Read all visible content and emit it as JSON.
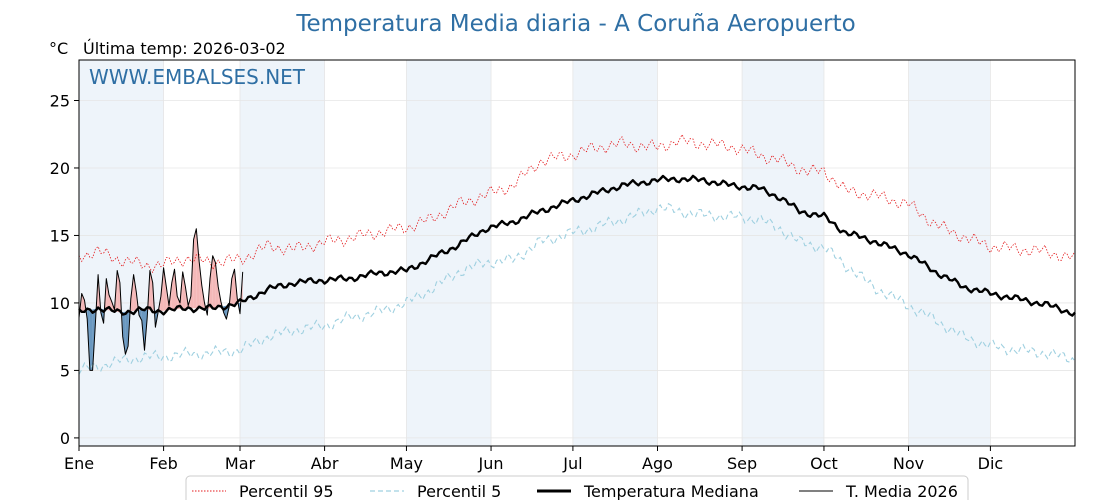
{
  "chart_data": {
    "type": "line",
    "title": "Temperatura Media diaria - A Coruña Aeropuerto",
    "unit_label": "°C",
    "subtitle": "Última temp: 2026-03-02",
    "watermark": "WWW.EMBALSES.NET",
    "x_tick_labels": [
      "Ene",
      "Feb",
      "Mar",
      "Abr",
      "May",
      "Jun",
      "Jul",
      "Ago",
      "Sep",
      "Oct",
      "Nov",
      "Dic"
    ],
    "x_tick_days": [
      1,
      32,
      60,
      91,
      121,
      152,
      182,
      213,
      244,
      274,
      305,
      335
    ],
    "xlim": [
      1,
      366
    ],
    "y_ticks": [
      0,
      5,
      10,
      15,
      20,
      25
    ],
    "ylim": [
      -0.6,
      28
    ],
    "grid": true,
    "shaded_months": [
      "Ene",
      "Mar",
      "May",
      "Jul",
      "Sep",
      "Nov"
    ],
    "legend_position": "bottom",
    "colors": {
      "p95": "#e41a1c",
      "p5": "#9fd0e0",
      "median": "#000000",
      "current": "#000000",
      "above_fill": "#f4b8b8",
      "below_fill": "#6a98c0",
      "title": "#2f6fa4",
      "shade": "#eef4fa"
    },
    "series": [
      {
        "name": "Percentil 95",
        "key": "p95",
        "style": "dotted",
        "points": [
          [
            1,
            13.5
          ],
          [
            8,
            13.8
          ],
          [
            16,
            13.2
          ],
          [
            25,
            12.8
          ],
          [
            31,
            12.8
          ],
          [
            40,
            13.3
          ],
          [
            50,
            13.0
          ],
          [
            60,
            13.2
          ],
          [
            70,
            14.2
          ],
          [
            80,
            14.0
          ],
          [
            91,
            14.5
          ],
          [
            100,
            14.8
          ],
          [
            110,
            15.2
          ],
          [
            121,
            15.6
          ],
          [
            130,
            16.2
          ],
          [
            140,
            17.3
          ],
          [
            150,
            18.0
          ],
          [
            160,
            18.7
          ],
          [
            170,
            20.5
          ],
          [
            182,
            21.0
          ],
          [
            190,
            21.5
          ],
          [
            200,
            21.8
          ],
          [
            213,
            21.5
          ],
          [
            220,
            22.0
          ],
          [
            230,
            21.8
          ],
          [
            240,
            21.6
          ],
          [
            250,
            21.0
          ],
          [
            260,
            20.4
          ],
          [
            268,
            19.7
          ],
          [
            274,
            19.8
          ],
          [
            282,
            18.3
          ],
          [
            292,
            18.0
          ],
          [
            305,
            17.3
          ],
          [
            315,
            15.8
          ],
          [
            325,
            14.9
          ],
          [
            335,
            14.2
          ],
          [
            345,
            14.0
          ],
          [
            355,
            13.8
          ],
          [
            366,
            13.3
          ]
        ]
      },
      {
        "name": "Percentil 5",
        "key": "p5",
        "style": "dashed",
        "points": [
          [
            1,
            5.0
          ],
          [
            8,
            5.3
          ],
          [
            16,
            5.7
          ],
          [
            25,
            6.0
          ],
          [
            31,
            6.0
          ],
          [
            40,
            6.2
          ],
          [
            50,
            6.3
          ],
          [
            60,
            6.5
          ],
          [
            70,
            7.5
          ],
          [
            80,
            8.0
          ],
          [
            91,
            8.3
          ],
          [
            100,
            8.9
          ],
          [
            110,
            9.3
          ],
          [
            121,
            10.0
          ],
          [
            130,
            11.0
          ],
          [
            140,
            12.3
          ],
          [
            150,
            13.0
          ],
          [
            160,
            13.2
          ],
          [
            170,
            14.5
          ],
          [
            182,
            15.2
          ],
          [
            190,
            15.6
          ],
          [
            200,
            16.2
          ],
          [
            210,
            16.8
          ],
          [
            213,
            17.1
          ],
          [
            220,
            16.8
          ],
          [
            230,
            16.5
          ],
          [
            240,
            16.4
          ],
          [
            250,
            16.2
          ],
          [
            258,
            15.5
          ],
          [
            265,
            14.5
          ],
          [
            274,
            14.1
          ],
          [
            282,
            12.8
          ],
          [
            292,
            11.2
          ],
          [
            305,
            9.8
          ],
          [
            315,
            8.7
          ],
          [
            325,
            7.5
          ],
          [
            335,
            6.8
          ],
          [
            345,
            6.5
          ],
          [
            355,
            6.3
          ],
          [
            366,
            5.8
          ]
        ]
      },
      {
        "name": "Temperatura Mediana",
        "key": "median",
        "style": "solid-thick",
        "points": [
          [
            1,
            9.3
          ],
          [
            8,
            9.6
          ],
          [
            16,
            9.3
          ],
          [
            25,
            9.5
          ],
          [
            31,
            9.4
          ],
          [
            40,
            9.6
          ],
          [
            50,
            9.6
          ],
          [
            60,
            10.0
          ],
          [
            70,
            11.0
          ],
          [
            80,
            11.5
          ],
          [
            91,
            11.7
          ],
          [
            100,
            11.8
          ],
          [
            110,
            12.2
          ],
          [
            121,
            12.4
          ],
          [
            130,
            13.3
          ],
          [
            140,
            14.3
          ],
          [
            150,
            15.5
          ],
          [
            160,
            16.0
          ],
          [
            170,
            16.8
          ],
          [
            182,
            17.6
          ],
          [
            190,
            18.1
          ],
          [
            200,
            18.7
          ],
          [
            213,
            19.1
          ],
          [
            220,
            19.2
          ],
          [
            230,
            19.1
          ],
          [
            240,
            18.7
          ],
          [
            250,
            18.5
          ],
          [
            258,
            17.8
          ],
          [
            265,
            16.8
          ],
          [
            274,
            16.4
          ],
          [
            282,
            15.2
          ],
          [
            292,
            14.6
          ],
          [
            305,
            13.6
          ],
          [
            315,
            12.3
          ],
          [
            325,
            11.2
          ],
          [
            335,
            10.7
          ],
          [
            345,
            10.3
          ],
          [
            355,
            9.9
          ],
          [
            366,
            9.2
          ]
        ]
      },
      {
        "name": "T. Media 2026",
        "key": "current",
        "style": "solid-thin",
        "points": [
          [
            1,
            8.9
          ],
          [
            2,
            10.7
          ],
          [
            3,
            10.2
          ],
          [
            4,
            8.8
          ],
          [
            5,
            5.0
          ],
          [
            6,
            5.0
          ],
          [
            7,
            8.5
          ],
          [
            8,
            12.1
          ],
          [
            9,
            9.3
          ],
          [
            10,
            8.5
          ],
          [
            11,
            11.8
          ],
          [
            12,
            10.6
          ],
          [
            13,
            10.1
          ],
          [
            14,
            9.5
          ],
          [
            15,
            12.4
          ],
          [
            16,
            11.5
          ],
          [
            17,
            7.5
          ],
          [
            18,
            6.2
          ],
          [
            19,
            6.8
          ],
          [
            20,
            10.3
          ],
          [
            21,
            12.1
          ],
          [
            22,
            10.8
          ],
          [
            23,
            9.1
          ],
          [
            24,
            8.7
          ],
          [
            25,
            6.5
          ],
          [
            26,
            8.9
          ],
          [
            27,
            12.4
          ],
          [
            28,
            11.5
          ],
          [
            29,
            8.2
          ],
          [
            30,
            9.3
          ],
          [
            31,
            10.5
          ],
          [
            32,
            12.6
          ],
          [
            33,
            11.2
          ],
          [
            34,
            9.8
          ],
          [
            35,
            11.5
          ],
          [
            36,
            12.5
          ],
          [
            37,
            10.5
          ],
          [
            38,
            10.0
          ],
          [
            39,
            12.3
          ],
          [
            40,
            11.2
          ],
          [
            41,
            9.8
          ],
          [
            42,
            10.5
          ],
          [
            43,
            14.7
          ],
          [
            44,
            15.5
          ],
          [
            45,
            13.1
          ],
          [
            46,
            11.3
          ],
          [
            47,
            10.0
          ],
          [
            48,
            9.1
          ],
          [
            49,
            11.8
          ],
          [
            50,
            13.5
          ],
          [
            51,
            13.0
          ],
          [
            52,
            11.2
          ],
          [
            53,
            10.1
          ],
          [
            54,
            9.3
          ],
          [
            55,
            8.8
          ],
          [
            56,
            9.7
          ],
          [
            57,
            11.8
          ],
          [
            58,
            12.5
          ],
          [
            59,
            10.3
          ],
          [
            60,
            9.2
          ],
          [
            61,
            12.3
          ]
        ]
      }
    ]
  }
}
